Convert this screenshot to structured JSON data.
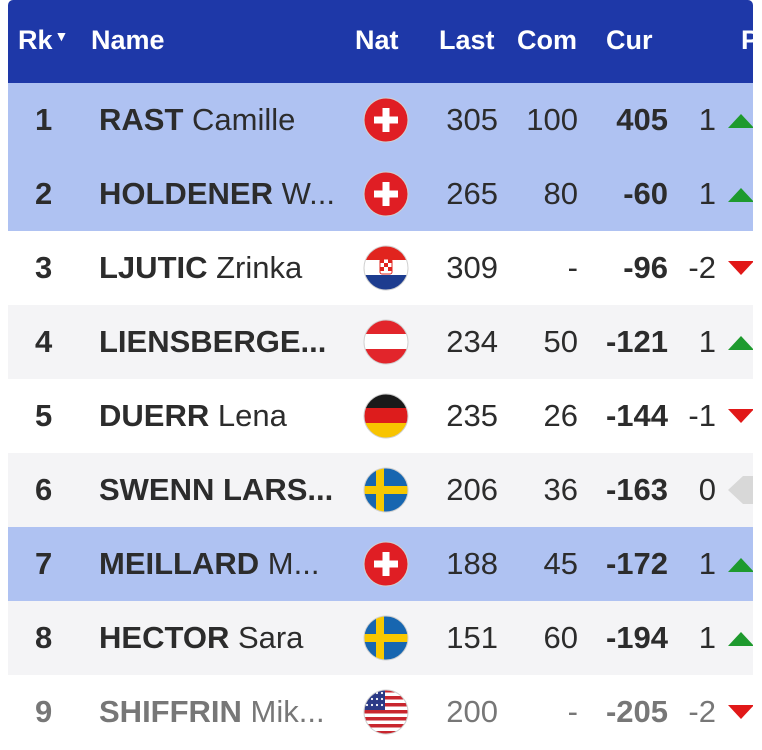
{
  "header": {
    "rank": "Rk",
    "rank_sort": "▼",
    "name": "Name",
    "nation": "Nat",
    "last": "Last",
    "competition": "Com",
    "current": "Cur",
    "cut": "P"
  },
  "rows": [
    {
      "rank": "1",
      "surname": "RAST",
      "first": "Camille",
      "nation": "SUI",
      "last": "305",
      "com": "100",
      "cur": "405",
      "chg": "1",
      "trend": "up",
      "style": "hl"
    },
    {
      "rank": "2",
      "surname": "HOLDENER",
      "first": "W...",
      "nation": "SUI",
      "last": "265",
      "com": "80",
      "cur": "-60",
      "chg": "1",
      "trend": "up",
      "style": "hl"
    },
    {
      "rank": "3",
      "surname": "LJUTIC",
      "first": "Zrinka",
      "nation": "CRO",
      "last": "309",
      "com": "-",
      "cur": "-96",
      "chg": "-2",
      "trend": "down",
      "style": "wh"
    },
    {
      "rank": "4",
      "surname": "LIENSBERGE...",
      "first": "",
      "nation": "AUT",
      "last": "234",
      "com": "50",
      "cur": "-121",
      "chg": "1",
      "trend": "up",
      "style": "alt"
    },
    {
      "rank": "5",
      "surname": "DUERR",
      "first": "Lena",
      "nation": "GER",
      "last": "235",
      "com": "26",
      "cur": "-144",
      "chg": "-1",
      "trend": "down",
      "style": "wh"
    },
    {
      "rank": "6",
      "surname": "SWENN LARS...",
      "first": "",
      "nation": "SWE",
      "last": "206",
      "com": "36",
      "cur": "-163",
      "chg": "0",
      "trend": "same",
      "style": "alt"
    },
    {
      "rank": "7",
      "surname": "MEILLARD",
      "first": "M...",
      "nation": "SUI",
      "last": "188",
      "com": "45",
      "cur": "-172",
      "chg": "1",
      "trend": "up",
      "style": "hl"
    },
    {
      "rank": "8",
      "surname": "HECTOR",
      "first": "Sara",
      "nation": "SWE",
      "last": "151",
      "com": "60",
      "cur": "-194",
      "chg": "1",
      "trend": "up",
      "style": "alt"
    },
    {
      "rank": "9",
      "surname": "SHIFFRIN",
      "first": "Mik...",
      "nation": "USA",
      "last": "200",
      "com": "-",
      "cur": "-205",
      "chg": "-2",
      "trend": "down",
      "style": "wh dim"
    }
  ],
  "colors": {
    "header_bg": "#1e38a8",
    "highlight_bg": "#afc2f2",
    "trend_up": "#1e9a2e",
    "trend_down": "#e11818",
    "trend_same": "#d8d8d8"
  }
}
